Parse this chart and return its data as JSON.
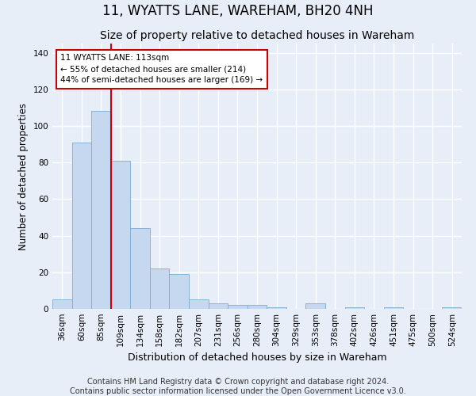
{
  "title": "11, WYATTS LANE, WAREHAM, BH20 4NH",
  "subtitle": "Size of property relative to detached houses in Wareham",
  "xlabel": "Distribution of detached houses by size in Wareham",
  "ylabel": "Number of detached properties",
  "footer_line1": "Contains HM Land Registry data © Crown copyright and database right 2024.",
  "footer_line2": "Contains public sector information licensed under the Open Government Licence v3.0.",
  "bar_labels": [
    "36sqm",
    "60sqm",
    "85sqm",
    "109sqm",
    "134sqm",
    "158sqm",
    "182sqm",
    "207sqm",
    "231sqm",
    "256sqm",
    "280sqm",
    "304sqm",
    "329sqm",
    "353sqm",
    "378sqm",
    "402sqm",
    "426sqm",
    "451sqm",
    "475sqm",
    "500sqm",
    "524sqm"
  ],
  "bar_values": [
    5,
    91,
    108,
    81,
    44,
    22,
    19,
    5,
    3,
    2,
    2,
    1,
    0,
    3,
    0,
    1,
    0,
    1,
    0,
    0,
    1
  ],
  "bar_color": "#c5d8f0",
  "bar_edgecolor": "#7aadd4",
  "vline_color": "#cc0000",
  "annotation_text": "11 WYATTS LANE: 113sqm\n← 55% of detached houses are smaller (214)\n44% of semi-detached houses are larger (169) →",
  "annotation_box_facecolor": "#ffffff",
  "annotation_box_edgecolor": "#cc0000",
  "ylim": [
    0,
    145
  ],
  "yticks": [
    0,
    20,
    40,
    60,
    80,
    100,
    120,
    140
  ],
  "background_color": "#e8eef8",
  "axes_background": "#e8eef8",
  "grid_color": "#ffffff",
  "title_fontsize": 12,
  "subtitle_fontsize": 10,
  "tick_fontsize": 7.5,
  "ylabel_fontsize": 8.5,
  "xlabel_fontsize": 9,
  "annotation_fontsize": 7.5,
  "footer_fontsize": 7
}
